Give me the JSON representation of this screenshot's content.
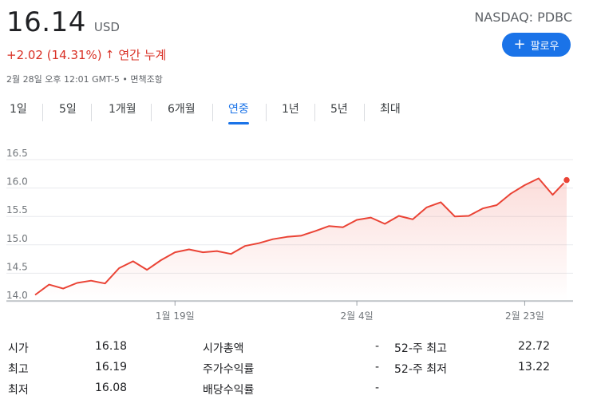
{
  "quote": {
    "price": "16.14",
    "currency": "USD",
    "ticker": "NASDAQ: PDBC",
    "change": "+2.02 (14.31%)",
    "change_arrow": "↑",
    "period_text": "연간 누계",
    "timestamp": "2월 28일 오후 12:01 GMT-5 • 면책조항",
    "follow_label": "팔로우",
    "accent_color": "#1a73e8",
    "change_color": "#d93025"
  },
  "tabs": [
    {
      "label": "1일",
      "active": false
    },
    {
      "label": "5일",
      "active": false
    },
    {
      "label": "1개월",
      "active": false
    },
    {
      "label": "6개월",
      "active": false
    },
    {
      "label": "연중",
      "active": true
    },
    {
      "label": "1년",
      "active": false
    },
    {
      "label": "5년",
      "active": false
    },
    {
      "label": "최대",
      "active": false
    }
  ],
  "chart_data": {
    "type": "area",
    "ylim": [
      14.0,
      16.5
    ],
    "y_ticks": [
      "16.5",
      "16.0",
      "15.5",
      "15.0",
      "14.5",
      "14.0"
    ],
    "x_tick_labels": [
      "1월 19일",
      "2월 4일",
      "2월 23일"
    ],
    "grid": true,
    "series_color": "#ea4335",
    "values": [
      14.12,
      14.3,
      14.23,
      14.33,
      14.37,
      14.32,
      14.59,
      14.71,
      14.56,
      14.73,
      14.87,
      14.92,
      14.87,
      14.89,
      14.84,
      14.98,
      15.03,
      15.1,
      15.14,
      15.16,
      15.24,
      15.33,
      15.31,
      15.44,
      15.48,
      15.37,
      15.51,
      15.45,
      15.66,
      15.75,
      15.5,
      15.51,
      15.64,
      15.7,
      15.9,
      16.05,
      16.17,
      15.88,
      16.14
    ]
  },
  "stats": {
    "left": [
      {
        "label": "시가",
        "value": "16.18"
      },
      {
        "label": "최고",
        "value": "16.19"
      },
      {
        "label": "최저",
        "value": "16.08"
      }
    ],
    "middle": [
      {
        "label": "시가총액",
        "value": "-"
      },
      {
        "label": "주가수익률",
        "value": "-"
      },
      {
        "label": "배당수익률",
        "value": "-"
      }
    ],
    "right": [
      {
        "label": "52-주 최고",
        "value": "22.72"
      },
      {
        "label": "52-주 최저",
        "value": "13.22"
      }
    ]
  }
}
